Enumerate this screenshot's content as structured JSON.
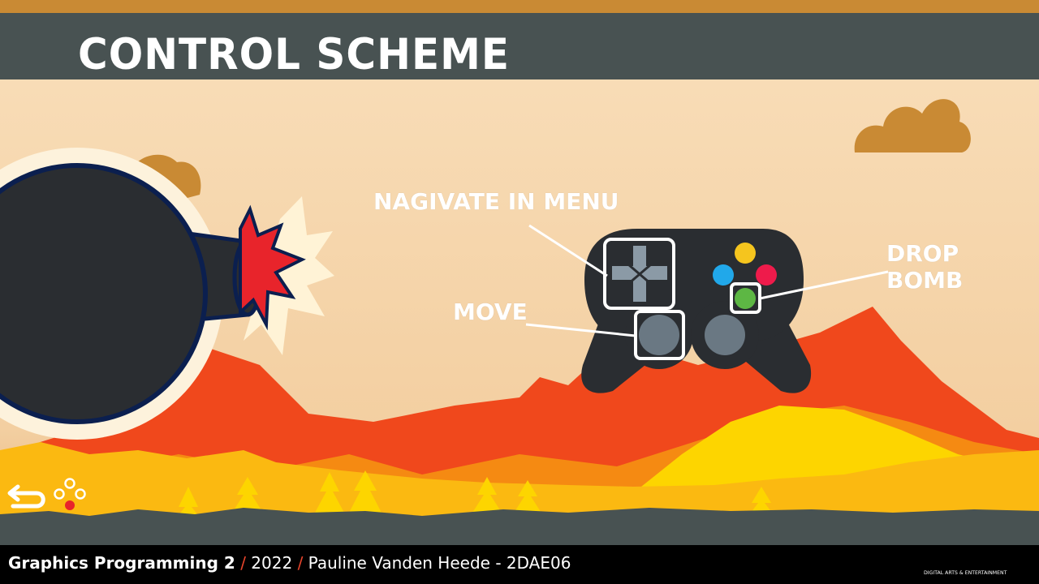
{
  "header": {
    "title": "CONTROL SCHEME"
  },
  "controls": [
    {
      "id": "dpad",
      "label": "NAGIVATE IN MENU"
    },
    {
      "id": "face-green",
      "label": "DROP BOMB"
    },
    {
      "id": "left-stick",
      "label": "MOVE"
    }
  ],
  "footer": {
    "course": "Graphics Programming 2",
    "separator": "/",
    "year": "2022",
    "author": "Pauline Vanden Heede - 2DAE06",
    "logo_caption": "DIGITAL ARTS & ENTERTAINMENT"
  },
  "icons": [
    "bomb-logo-icon",
    "back-arrow-icon",
    "face-buttons-icon",
    "dae-logo-icon"
  ],
  "colors": {
    "sky": "#f6d9b4",
    "title_bar": "#485252",
    "accent_orange": "#c98a34",
    "lava_red": "#f0481c",
    "lava_yellow": "#fdd500",
    "controller": "#2a2d31",
    "button_yellow": "#f5c51e",
    "button_blue": "#21a8ea",
    "button_red": "#ee1b4b",
    "button_green": "#5db744"
  }
}
